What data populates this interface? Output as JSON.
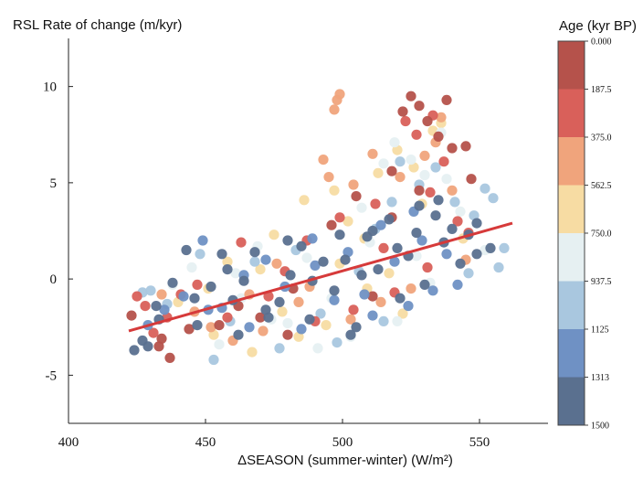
{
  "chart_data": {
    "type": "scatter",
    "title": "",
    "ylabel": "RSL Rate of change (m/kyr)",
    "xlabel": "ΔSEASON (summer-winter) (W/m²)",
    "xlim": [
      400,
      575
    ],
    "ylim": [
      -7.5,
      12.5
    ],
    "xticks": [
      400,
      450,
      500,
      550
    ],
    "xtick_labels": [
      "400",
      "450",
      "500",
      "550"
    ],
    "yticks": [
      -5,
      0,
      5,
      10
    ],
    "ytick_labels": [
      "-5",
      "0",
      "5",
      "10"
    ],
    "trendline": {
      "x": [
        422,
        562
      ],
      "y": [
        -2.7,
        2.9
      ],
      "color": "#d63a3a"
    },
    "colorbar": {
      "title": "Age (kyr BP)",
      "labels": [
        "0.000",
        "187.5",
        "375.0",
        "562.5",
        "750.0",
        "937.5",
        "1125",
        "1313",
        "1500"
      ],
      "colors": [
        "#b5524b",
        "#d9605a",
        "#f0a47c",
        "#f7dca3",
        "#e6f0f2",
        "#a9c7df",
        "#6f91c4",
        "#5a708f"
      ]
    },
    "series": [
      {
        "name": "0.000-187.5",
        "color": "#b5524b",
        "points": [
          [
            423,
            -1.9
          ],
          [
            433,
            -3.5
          ],
          [
            437,
            -4.1
          ],
          [
            444,
            -2.6
          ],
          [
            462,
            -1.4
          ],
          [
            470,
            -2.0
          ],
          [
            482,
            -0.5
          ],
          [
            496,
            2.8
          ],
          [
            505,
            4.3
          ],
          [
            518,
            5.6
          ],
          [
            522,
            8.7
          ],
          [
            525,
            9.5
          ],
          [
            528,
            9.0
          ],
          [
            531,
            8.2
          ],
          [
            535,
            7.4
          ],
          [
            538,
            9.3
          ],
          [
            540,
            6.8
          ],
          [
            545,
            6.9
          ],
          [
            547,
            5.2
          ],
          [
            528,
            4.6
          ],
          [
            518,
            3.2
          ],
          [
            511,
            -0.9
          ],
          [
            480,
            -2.9
          ],
          [
            455,
            -2.4
          ],
          [
            434,
            -3.1
          ]
        ]
      },
      {
        "name": "187.5-375.0",
        "color": "#d9605a",
        "points": [
          [
            425,
            -0.9
          ],
          [
            428,
            -1.4
          ],
          [
            431,
            -2.8
          ],
          [
            441,
            -0.8
          ],
          [
            447,
            -0.3
          ],
          [
            463,
            1.9
          ],
          [
            479,
            0.4
          ],
          [
            487,
            2.0
          ],
          [
            499,
            3.2
          ],
          [
            512,
            3.9
          ],
          [
            523,
            8.2
          ],
          [
            527,
            7.5
          ],
          [
            533,
            8.5
          ],
          [
            537,
            6.1
          ],
          [
            532,
            4.5
          ],
          [
            542,
            3.0
          ],
          [
            546,
            2.4
          ],
          [
            519,
            -0.7
          ],
          [
            504,
            -1.6
          ],
          [
            490,
            -2.2
          ],
          [
            473,
            -0.9
          ],
          [
            458,
            -2.0
          ],
          [
            436,
            -2.0
          ],
          [
            515,
            1.6
          ],
          [
            531,
            0.6
          ]
        ]
      },
      {
        "name": "375.0-562.5",
        "color": "#f0a47c",
        "points": [
          [
            434,
            -0.8
          ],
          [
            446,
            -1.7
          ],
          [
            452,
            -2.5
          ],
          [
            460,
            -3.2
          ],
          [
            471,
            -2.7
          ],
          [
            484,
            -1.2
          ],
          [
            493,
            6.2
          ],
          [
            495,
            5.3
          ],
          [
            497,
            8.8
          ],
          [
            498,
            9.3
          ],
          [
            499,
            9.6
          ],
          [
            504,
            4.9
          ],
          [
            511,
            6.5
          ],
          [
            521,
            5.3
          ],
          [
            530,
            6.4
          ],
          [
            534,
            7.1
          ],
          [
            536,
            8.4
          ],
          [
            540,
            4.6
          ],
          [
            525,
            -0.5
          ],
          [
            514,
            -1.2
          ],
          [
            503,
            -2.1
          ],
          [
            476,
            0.8
          ],
          [
            466,
            -0.8
          ],
          [
            488,
            -0.4
          ],
          [
            545,
            1.0
          ]
        ]
      },
      {
        "name": "562.5-750.0",
        "color": "#f7dca3",
        "points": [
          [
            440,
            -1.2
          ],
          [
            451,
            -0.5
          ],
          [
            458,
            0.9
          ],
          [
            467,
            -3.8
          ],
          [
            475,
            2.3
          ],
          [
            478,
            -1.7
          ],
          [
            486,
            4.1
          ],
          [
            494,
            -2.4
          ],
          [
            497,
            4.6
          ],
          [
            502,
            3.0
          ],
          [
            508,
            2.1
          ],
          [
            513,
            5.5
          ],
          [
            520,
            6.7
          ],
          [
            526,
            5.8
          ],
          [
            533,
            7.7
          ],
          [
            536,
            8.1
          ],
          [
            529,
            3.9
          ],
          [
            517,
            0.3
          ],
          [
            522,
            -1.8
          ],
          [
            509,
            -0.5
          ],
          [
            484,
            -3.0
          ],
          [
            470,
            0.5
          ],
          [
            453,
            -2.9
          ],
          [
            544,
            2.1
          ],
          [
            499,
            0.8
          ]
        ]
      },
      {
        "name": "750.0-937.5",
        "color": "#e6f0f2",
        "points": [
          [
            438,
            -0.3
          ],
          [
            445,
            0.6
          ],
          [
            455,
            -3.4
          ],
          [
            463,
            -1.0
          ],
          [
            469,
            1.7
          ],
          [
            480,
            -2.3
          ],
          [
            487,
            1.1
          ],
          [
            496,
            -1.0
          ],
          [
            503,
            -3.0
          ],
          [
            510,
            1.9
          ],
          [
            515,
            6.0
          ],
          [
            519,
            7.1
          ],
          [
            525,
            6.2
          ],
          [
            530,
            5.4
          ],
          [
            536,
            7.6
          ],
          [
            538,
            5.2
          ],
          [
            543,
            3.5
          ],
          [
            527,
            1.2
          ],
          [
            520,
            -2.2
          ],
          [
            507,
            3.7
          ],
          [
            491,
            -3.6
          ],
          [
            474,
            -2.1
          ],
          [
            461,
            0.3
          ],
          [
            532,
            -0.2
          ],
          [
            552,
            1.5
          ]
        ]
      },
      {
        "name": "937.5-1125",
        "color": "#a9c7df",
        "points": [
          [
            427,
            -0.7
          ],
          [
            430,
            -0.6
          ],
          [
            436,
            -1.3
          ],
          [
            448,
            1.3
          ],
          [
            453,
            -4.2
          ],
          [
            459,
            -2.2
          ],
          [
            468,
            0.9
          ],
          [
            477,
            -3.6
          ],
          [
            483,
            1.5
          ],
          [
            492,
            -1.8
          ],
          [
            498,
            -3.3
          ],
          [
            506,
            0.4
          ],
          [
            512,
            2.6
          ],
          [
            518,
            4.0
          ],
          [
            521,
            6.1
          ],
          [
            528,
            4.9
          ],
          [
            534,
            5.8
          ],
          [
            541,
            4.0
          ],
          [
            548,
            3.3
          ],
          [
            552,
            4.7
          ],
          [
            555,
            4.2
          ],
          [
            559,
            1.6
          ],
          [
            557,
            0.6
          ],
          [
            546,
            0.3
          ],
          [
            515,
            -2.2
          ]
        ]
      },
      {
        "name": "1125-1313",
        "color": "#6f91c4",
        "points": [
          [
            429,
            -2.4
          ],
          [
            435,
            -1.6
          ],
          [
            442,
            -0.9
          ],
          [
            449,
            2.0
          ],
          [
            456,
            -1.5
          ],
          [
            464,
            0.2
          ],
          [
            472,
            1.0
          ],
          [
            479,
            -0.4
          ],
          [
            485,
            -2.6
          ],
          [
            490,
            0.7
          ],
          [
            497,
            -1.1
          ],
          [
            502,
            1.4
          ],
          [
            508,
            -0.8
          ],
          [
            514,
            2.8
          ],
          [
            519,
            0.9
          ],
          [
            524,
            -1.4
          ],
          [
            529,
            2.0
          ],
          [
            533,
            -0.6
          ],
          [
            538,
            1.3
          ],
          [
            542,
            -0.3
          ],
          [
            451,
            -1.6
          ],
          [
            466,
            -2.5
          ],
          [
            489,
            2.1
          ],
          [
            511,
            -1.9
          ],
          [
            526,
            3.5
          ]
        ]
      },
      {
        "name": "1313-1500",
        "color": "#5a708f",
        "points": [
          [
            424,
            -3.7
          ],
          [
            427,
            -3.2
          ],
          [
            429,
            -3.5
          ],
          [
            433,
            -2.1
          ],
          [
            438,
            -0.2
          ],
          [
            443,
            1.5
          ],
          [
            447,
            -2.4
          ],
          [
            452,
            -0.4
          ],
          [
            456,
            1.3
          ],
          [
            460,
            -1.1
          ],
          [
            464,
            -0.1
          ],
          [
            468,
            1.4
          ],
          [
            473,
            -2.0
          ],
          [
            477,
            -1.2
          ],
          [
            481,
            0.2
          ],
          [
            485,
            1.7
          ],
          [
            489,
            -0.1
          ],
          [
            493,
            0.9
          ],
          [
            497,
            -0.6
          ],
          [
            501,
            1.0
          ],
          [
            505,
            -2.5
          ],
          [
            509,
            2.2
          ],
          [
            513,
            0.5
          ],
          [
            517,
            3.1
          ],
          [
            521,
            -1.0
          ],
          [
            524,
            1.2
          ],
          [
            527,
            2.4
          ],
          [
            530,
            -0.3
          ],
          [
            534,
            3.3
          ],
          [
            537,
            1.9
          ],
          [
            540,
            2.6
          ],
          [
            543,
            0.8
          ],
          [
            546,
            2.3
          ],
          [
            549,
            1.3
          ],
          [
            554,
            1.6
          ],
          [
            549,
            2.9
          ],
          [
            535,
            4.1
          ],
          [
            528,
            3.8
          ],
          [
            511,
            2.5
          ],
          [
            503,
            -2.9
          ],
          [
            472,
            -1.6
          ],
          [
            462,
            -2.9
          ],
          [
            446,
            -1.0
          ],
          [
            432,
            -1.4
          ],
          [
            458,
            0.5
          ],
          [
            488,
            -2.1
          ],
          [
            499,
            2.3
          ],
          [
            520,
            1.6
          ],
          [
            507,
            0.2
          ],
          [
            480,
            2.0
          ]
        ]
      }
    ]
  }
}
